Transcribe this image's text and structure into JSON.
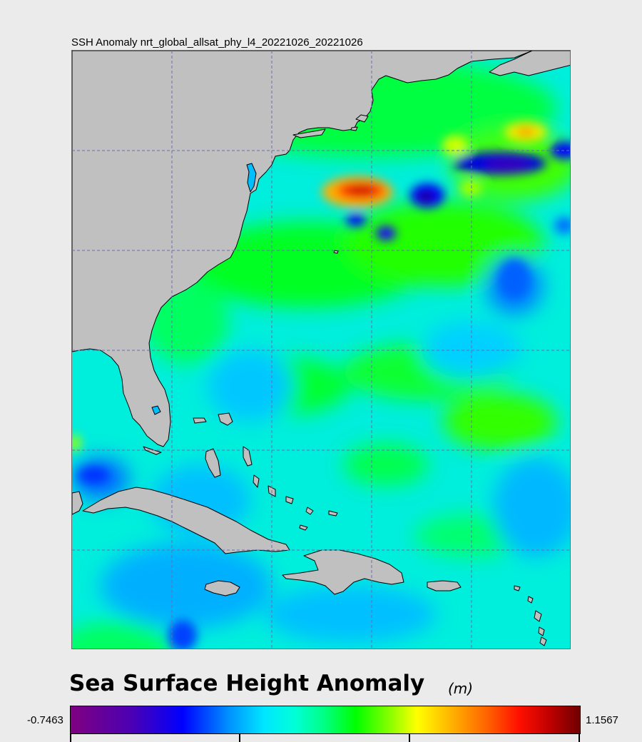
{
  "map": {
    "title": "SSH Anomaly nrt_global_allsat_phy_l4_20221026_20221026"
  },
  "legend": {
    "title": "Sea Surface Height Anomaly",
    "unit": "(m)",
    "min_label": "-0.7463",
    "max_label": "1.1567"
  },
  "colors": {
    "land": "#c0c0c0",
    "lakes": "#00bfff",
    "ocean_base": "#00e8e0",
    "gridlines": "#6b6bb0",
    "background": "#ebebeb"
  }
}
